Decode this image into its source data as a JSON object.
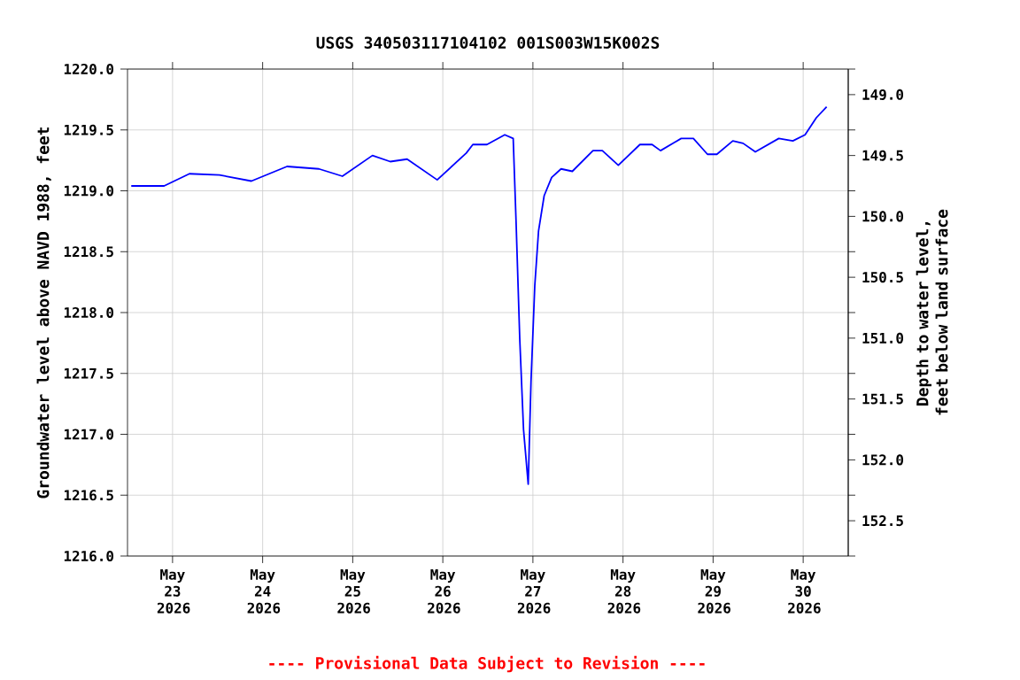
{
  "chart_data": {
    "type": "line",
    "title": "USGS 340503117104102 001S003W15K002S",
    "ylabel": "Groundwater level above NAVD 1988, feet",
    "y2label": "Depth to water level, feet below land surface",
    "annotations": [
      "---- Provisional Data Subject to Revision ----"
    ],
    "xlim": [
      "2026-05-22T12:00",
      "2026-05-30T12:00"
    ],
    "xticks": [
      {
        "value": "2026-05-23",
        "label": "May 23 2026"
      },
      {
        "value": "2026-05-24",
        "label": "May 24 2026"
      },
      {
        "value": "2026-05-25",
        "label": "May 25 2026"
      },
      {
        "value": "2026-05-26",
        "label": "May 26 2026"
      },
      {
        "value": "2026-05-27",
        "label": "May 27 2026"
      },
      {
        "value": "2026-05-28",
        "label": "May 28 2026"
      },
      {
        "value": "2026-05-29",
        "label": "May 29 2026"
      },
      {
        "value": "2026-05-30",
        "label": "May 30 2026"
      }
    ],
    "ylim": [
      1216,
      1220
    ],
    "yticks": [
      {
        "value": 1216,
        "label": "1216.0"
      },
      {
        "value": 1216.5,
        "label": "1216.5"
      },
      {
        "value": 1217,
        "label": "1217.0"
      },
      {
        "value": 1217.5,
        "label": "1217.5"
      },
      {
        "value": 1218,
        "label": "1218.0"
      },
      {
        "value": 1218.5,
        "label": "1218.5"
      },
      {
        "value": 1219,
        "label": "1219.0"
      },
      {
        "value": 1219.5,
        "label": "1219.5"
      },
      {
        "value": 1220,
        "label": "1220.0"
      }
    ],
    "y2lim": [
      152.79,
      148.79
    ],
    "y2ticks": [
      {
        "value": 149,
        "label": "149.0"
      },
      {
        "value": 149.5,
        "label": "149.5"
      },
      {
        "value": 150,
        "label": "150.0"
      },
      {
        "value": 150.5,
        "label": "150.5"
      },
      {
        "value": 151,
        "label": "151.0"
      },
      {
        "value": 151.5,
        "label": "151.5"
      },
      {
        "value": 152,
        "label": "152.0"
      },
      {
        "value": 152.5,
        "label": "152.5"
      }
    ],
    "grid": true,
    "marker": "none",
    "line_style": "solid",
    "series": [
      {
        "color": "#0000ff",
        "x": [
          "2026-05-22T13:00",
          "2026-05-22T21:45",
          "2026-05-23T04:30",
          "2026-05-23T12:30",
          "2026-05-23T21:00",
          "2026-05-24T06:30",
          "2026-05-24T15:00",
          "2026-05-24T21:15",
          "2026-05-25T05:15",
          "2026-05-25T10:00",
          "2026-05-25T14:30",
          "2026-05-25T22:30",
          "2026-05-26T06:15",
          "2026-05-26T08:00",
          "2026-05-26T11:45",
          "2026-05-26T16:30",
          "2026-05-26T18:45",
          "2026-05-26T19:30",
          "2026-05-26T20:30",
          "2026-05-26T21:30",
          "2026-05-26T22:45",
          "2026-05-26T23:30",
          "2026-05-27T00:30",
          "2026-05-27T01:30",
          "2026-05-27T03:00",
          "2026-05-27T05:00",
          "2026-05-27T07:30",
          "2026-05-27T10:30",
          "2026-05-27T16:00",
          "2026-05-27T18:30",
          "2026-05-27T22:45",
          "2026-05-28T04:30",
          "2026-05-28T07:45",
          "2026-05-28T10:00",
          "2026-05-28T15:30",
          "2026-05-28T18:45",
          "2026-05-28T22:30",
          "2026-05-29T01:00",
          "2026-05-29T05:15",
          "2026-05-29T08:00",
          "2026-05-29T11:15",
          "2026-05-29T17:30",
          "2026-05-29T21:15",
          "2026-05-30T00:30",
          "2026-05-30T03:30",
          "2026-05-30T06:15"
        ],
        "values": [
          1219.04,
          1219.04,
          1219.14,
          1219.13,
          1219.08,
          1219.2,
          1219.18,
          1219.12,
          1219.29,
          1219.24,
          1219.26,
          1219.09,
          1219.31,
          1219.38,
          1219.38,
          1219.46,
          1219.43,
          1218.76,
          1217.78,
          1217.04,
          1216.59,
          1217.44,
          1218.22,
          1218.67,
          1218.96,
          1219.11,
          1219.18,
          1219.16,
          1219.33,
          1219.33,
          1219.21,
          1219.38,
          1219.38,
          1219.33,
          1219.43,
          1219.43,
          1219.3,
          1219.3,
          1219.41,
          1219.39,
          1219.32,
          1219.43,
          1219.41,
          1219.46,
          1219.6,
          1219.69
        ]
      }
    ]
  }
}
